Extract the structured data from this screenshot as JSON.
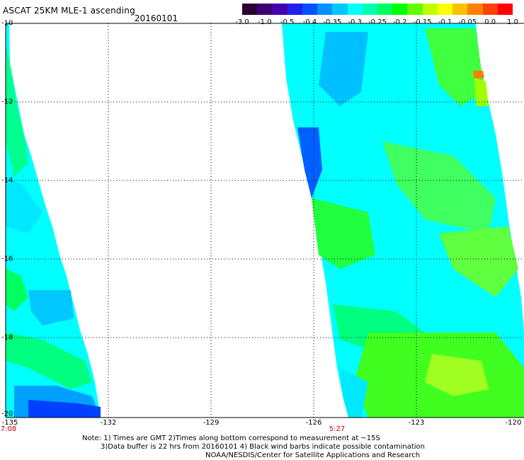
{
  "title": "ASCAT 25KM MLE-1 ascending",
  "date": "20160101",
  "colorbar": {
    "colors": [
      "#2a0030",
      "#3c0070",
      "#4400b0",
      "#2020e8",
      "#0050ff",
      "#0090ff",
      "#00c8ff",
      "#00ffff",
      "#00ffb0",
      "#00ff60",
      "#00ff00",
      "#60ff00",
      "#c0ff00",
      "#ffff00",
      "#ffc000",
      "#ff8000",
      "#ff4000",
      "#ff0000"
    ],
    "tick_labels": [
      "-3.0",
      "-1.0",
      "-0.5",
      "-0.4",
      "-0.35",
      "-0.3",
      "-0.25",
      "-0.2",
      "-0.15",
      "-0.1",
      "-0.05",
      "0.0",
      "1.0"
    ]
  },
  "axes": {
    "lat_labels": [
      "-10",
      "-12",
      "-14",
      "-16",
      "-18",
      "-20"
    ],
    "lon_labels": [
      "-135",
      "-132",
      "-129",
      "-126",
      "-123",
      "-120"
    ],
    "gridlines": "dotted"
  },
  "pass_times": [
    "7:08",
    "5:27"
  ],
  "notes": {
    "line1": "Note: 1) Times are GMT 2)Times along bottom correspond to measurement at ~15S",
    "line2": "3)Data buffer is 22 hrs from 20160101 4) Black wind barbs indicate possible contamination",
    "line3": "NOAA/NESDIS/Center for Satellite Applications and Research"
  },
  "swaths": [
    {
      "name": "west-swath",
      "dominant_color": "#00ffff",
      "secondary_colors": [
        "#00ff80",
        "#00c8ff",
        "#0060ff"
      ]
    },
    {
      "name": "east-swath",
      "dominant_color": "#00ffff",
      "secondary_colors": [
        "#00ff40",
        "#00c0ff",
        "#80ff00",
        "#ff8000"
      ]
    }
  ]
}
